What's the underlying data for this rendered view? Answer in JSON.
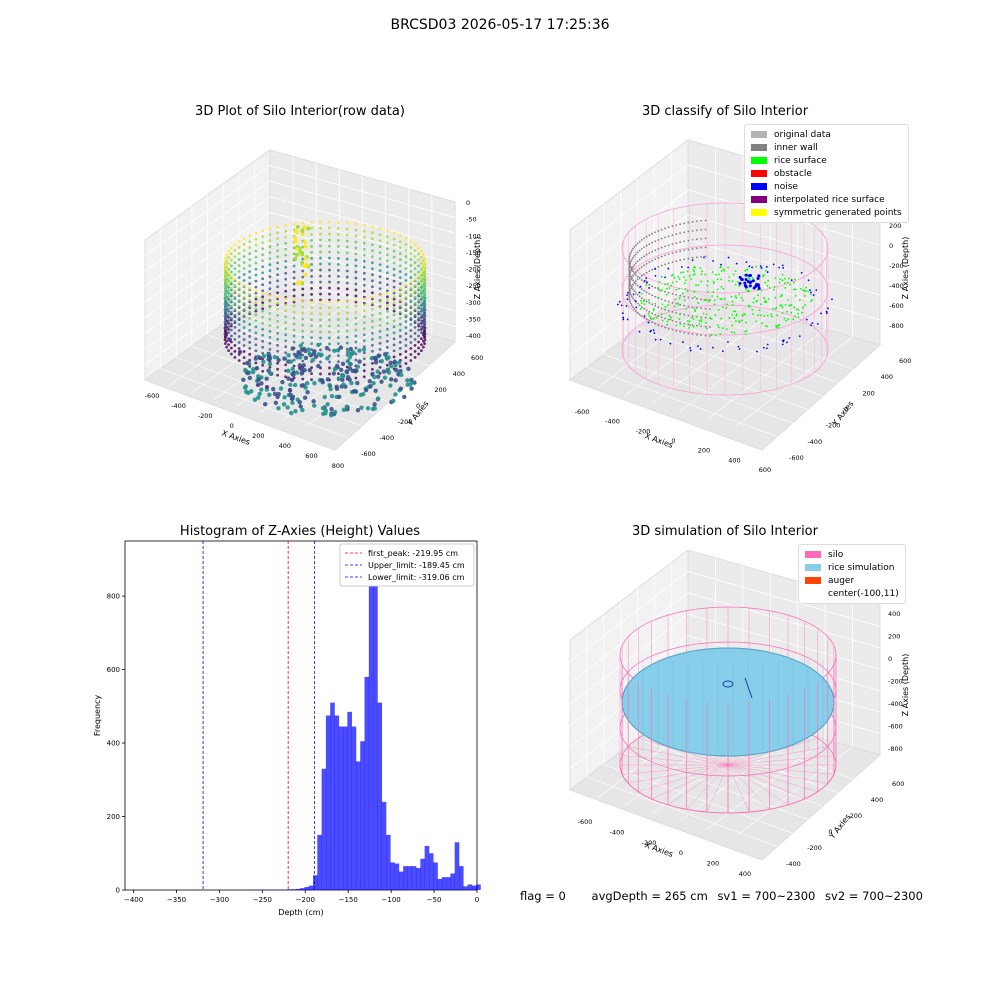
{
  "suptitle": "BRCSD03 2026-05-17 17:25:36",
  "panels": {
    "raw": {
      "title": "3D Plot of Silo Interior(row data)",
      "xlabel": "X Axies",
      "ylabel": "Y Axies",
      "zlabel": "Z Axies (Depth)",
      "xticks": [
        "-600",
        "-400",
        "-200",
        "0",
        "200",
        "400",
        "600",
        "800"
      ],
      "yticks": [
        "-600",
        "-400",
        "-200",
        "0",
        "200",
        "400",
        "600"
      ],
      "zticks": [
        "0",
        "-50",
        "-100",
        "-150",
        "-200",
        "-250",
        "-300",
        "-350",
        "-400"
      ]
    },
    "classify": {
      "title": "3D classify of Silo Interior",
      "xlabel": "X Axies",
      "ylabel": "Y Axies",
      "zlabel": "Z Axies (Depth)",
      "xticks": [
        "-600",
        "-400",
        "-200",
        "0",
        "200",
        "400",
        "600"
      ],
      "yticks": [
        "-600",
        "-400",
        "-200",
        "0",
        "200",
        "400",
        "600"
      ],
      "zticks": [
        "200",
        "0",
        "-200",
        "-400",
        "-600",
        "-800"
      ],
      "legend": [
        {
          "label": "original data",
          "color": "#b3b3b3"
        },
        {
          "label": "inner wall",
          "color": "#808080"
        },
        {
          "label": "rice surface",
          "color": "#00ff00"
        },
        {
          "label": "obstacle",
          "color": "#ff0000"
        },
        {
          "label": "noise",
          "color": "#0000ff"
        },
        {
          "label": "interpolated rice surface",
          "color": "#800080"
        },
        {
          "label": "symmetric generated points",
          "color": "#ffff00"
        }
      ]
    },
    "sim": {
      "title": "3D simulation of Silo Interior",
      "xlabel": "X Axies",
      "ylabel": "Y Axies",
      "zlabel": "Z Axies (Depth)",
      "xticks": [
        "-600",
        "-400",
        "-200",
        "0",
        "200",
        "400"
      ],
      "yticks": [
        "-400",
        "-200",
        "0",
        "200",
        "400",
        "600"
      ],
      "zticks": [
        "400",
        "200",
        "0",
        "-200",
        "-400",
        "-600",
        "-800"
      ],
      "legend": [
        {
          "label": "silo",
          "color": "#ff69b4"
        },
        {
          "label": "rice simulation",
          "color": "#87ceeb"
        },
        {
          "label": "auger",
          "color": "#ff4500"
        },
        {
          "label": "center(-100,11)",
          "color": ""
        }
      ]
    }
  },
  "status": {
    "flag": "flag = 0",
    "avg_depth": "avgDepth = 265 cm",
    "sv1": "sv1 = 700~2300",
    "sv2": "sv2 = 700~2300"
  },
  "chart_data": [
    {
      "type": "scatter",
      "title": "3D Plot of Silo Interior(row data)",
      "xlabel": "X Axies",
      "ylabel": "Y Axies",
      "zlabel": "Z Axies (Depth)",
      "xlim": [
        -600,
        800
      ],
      "ylim": [
        -600,
        600
      ],
      "zlim": [
        -420,
        0
      ],
      "colormap": "viridis"
    },
    {
      "type": "scatter",
      "title": "3D classify of Silo Interior",
      "xlabel": "X Axies",
      "ylabel": "Y Axies",
      "zlabel": "Z Axies (Depth)",
      "xlim": [
        -600,
        600
      ],
      "ylim": [
        -600,
        600
      ],
      "zlim": [
        -800,
        200
      ],
      "series": [
        {
          "name": "original data",
          "color": "#b3b3b3"
        },
        {
          "name": "inner wall",
          "color": "#808080"
        },
        {
          "name": "rice surface",
          "color": "#00ff00"
        },
        {
          "name": "obstacle",
          "color": "#ff0000"
        },
        {
          "name": "noise",
          "color": "#0000ff"
        },
        {
          "name": "interpolated rice surface",
          "color": "#800080"
        },
        {
          "name": "symmetric generated points",
          "color": "#ffff00"
        }
      ],
      "legend_position": "top-right"
    },
    {
      "type": "histogram",
      "title": "Histogram of Z-Axies (Height) Values",
      "xlabel": "Depth (cm)",
      "ylabel": "Frequency",
      "xlim": [
        -410,
        0
      ],
      "ylim": [
        0,
        950
      ],
      "xticks": [
        -400,
        -350,
        -300,
        -250,
        -200,
        -150,
        -100,
        -50,
        0
      ],
      "yticks": [
        0,
        200,
        400,
        600,
        800
      ],
      "bar_color": "#0000ff",
      "bin_width": 5,
      "bins": [
        [
          -395,
          1
        ],
        [
          -390,
          1
        ],
        [
          -385,
          1
        ],
        [
          -380,
          1
        ],
        [
          -375,
          1
        ],
        [
          -370,
          1
        ],
        [
          -365,
          1
        ],
        [
          -360,
          1
        ],
        [
          -355,
          2
        ],
        [
          -350,
          2
        ],
        [
          -345,
          3
        ],
        [
          -340,
          5
        ],
        [
          -335,
          8
        ],
        [
          -330,
          12
        ],
        [
          -325,
          40
        ],
        [
          -320,
          150
        ],
        [
          -315,
          330
        ],
        [
          -310,
          475
        ],
        [
          -305,
          510
        ],
        [
          -300,
          475
        ],
        [
          -295,
          445
        ],
        [
          -290,
          445
        ],
        [
          -285,
          485
        ],
        [
          -280,
          445
        ],
        [
          -275,
          350
        ],
        [
          -270,
          405
        ],
        [
          -265,
          580
        ],
        [
          -260,
          900
        ],
        [
          -255,
          870
        ],
        [
          -250,
          510
        ],
        [
          -245,
          240
        ],
        [
          -240,
          150
        ],
        [
          -235,
          75
        ],
        [
          -230,
          72
        ],
        [
          -225,
          50
        ],
        [
          -220,
          65
        ],
        [
          -215,
          65
        ],
        [
          -210,
          65
        ],
        [
          -205,
          60
        ],
        [
          -200,
          85
        ],
        [
          -195,
          120
        ],
        [
          -190,
          100
        ],
        [
          -185,
          75
        ],
        [
          -180,
          30
        ],
        [
          -175,
          35
        ],
        [
          -170,
          35
        ],
        [
          -165,
          45
        ],
        [
          -160,
          130
        ],
        [
          -155,
          65
        ],
        [
          -150,
          10
        ],
        [
          -145,
          15
        ],
        [
          -140,
          12
        ],
        [
          -135,
          15
        ]
      ],
      "bin_x_offset": 134,
      "lines": [
        {
          "name": "first_peak: -219.95 cm",
          "x": -219.95,
          "color": "#ff0000"
        },
        {
          "name": "Upper_limit: -189.45 cm",
          "x": -189.45,
          "color": "#0000ff"
        },
        {
          "name": "Lower_limit: -319.06 cm",
          "x": -319.06,
          "color": "#0000ff"
        }
      ],
      "legend_position": "top-right"
    },
    {
      "type": "surface",
      "title": "3D simulation of Silo Interior",
      "xlabel": "X Axies",
      "ylabel": "Y Axies",
      "zlabel": "Z Axies (Depth)",
      "xlim": [
        -700,
        500
      ],
      "ylim": [
        -500,
        700
      ],
      "zlim": [
        -800,
        400
      ],
      "series": [
        {
          "name": "silo",
          "color": "#ff69b4"
        },
        {
          "name": "rice simulation",
          "color": "#87ceeb"
        },
        {
          "name": "auger",
          "color": "#ff4500"
        },
        {
          "name": "center(-100,11)"
        }
      ],
      "legend_position": "top-right"
    }
  ]
}
